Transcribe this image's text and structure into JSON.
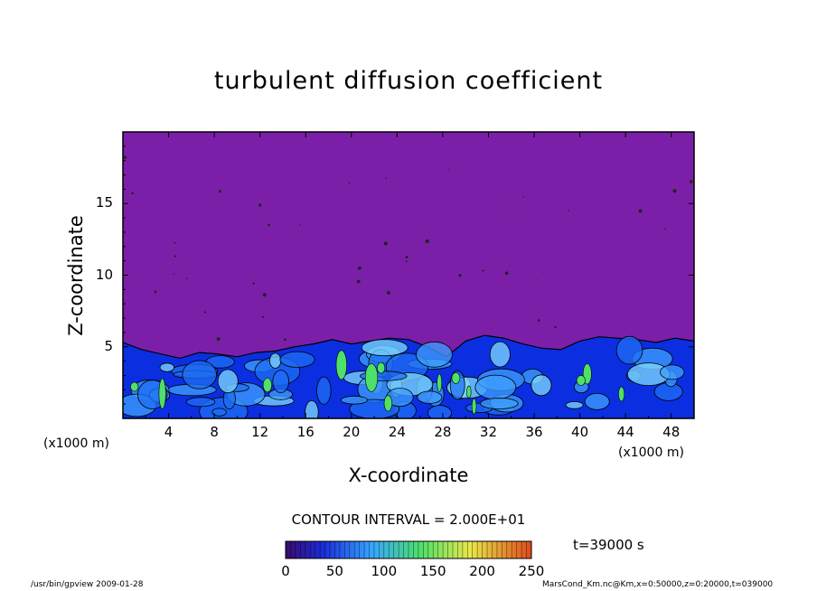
{
  "chart_data": {
    "type": "heatmap",
    "title": "turbulent diffusion coefficient",
    "xlabel": "X-coordinate",
    "ylabel": "Z-coordinate",
    "x_unit_left": "(x1000 m)",
    "x_unit_right": "(x1000 m)",
    "xlim": [
      0,
      50
    ],
    "ylim": [
      0,
      20
    ],
    "x_ticks": [
      "4",
      "8",
      "12",
      "16",
      "20",
      "24",
      "28",
      "32",
      "36",
      "40",
      "44",
      "48"
    ],
    "y_ticks": [
      "5",
      "10",
      "15"
    ],
    "contour_interval": "CONTOUR INTERVAL = 2.000E+01",
    "colorbar": {
      "min": 0,
      "max": 250,
      "ticks": [
        "0",
        "50",
        "100",
        "150",
        "200",
        "250"
      ]
    },
    "time_label": "t=39000 s",
    "turbulent_layer_top": [
      5.3,
      4.8,
      4.5,
      4.2,
      4.6,
      4.5,
      4.3,
      4.6,
      4.7,
      5.0,
      5.2,
      5.5,
      5.2,
      5.4,
      5.6,
      5.5,
      5.0,
      4.3,
      5.4,
      5.8,
      5.6,
      5.2,
      4.9,
      4.8,
      5.4,
      5.7,
      5.6,
      5.5,
      5.3,
      5.6,
      5.4
    ],
    "background_value": 0,
    "colors": {
      "background_region": "#7b1fa9",
      "deep_blue": "#0b2fe0",
      "mid_blue": "#1f6ff5",
      "light_blue": "#3fa0ff",
      "cyan": "#7fdcff",
      "green": "#4fe06a"
    }
  },
  "footer": {
    "left": "/usr/bin/gpview   2009-01-28",
    "right": "MarsCond_Km.nc@Km,x=0:50000,z=0:20000,t=039000"
  }
}
